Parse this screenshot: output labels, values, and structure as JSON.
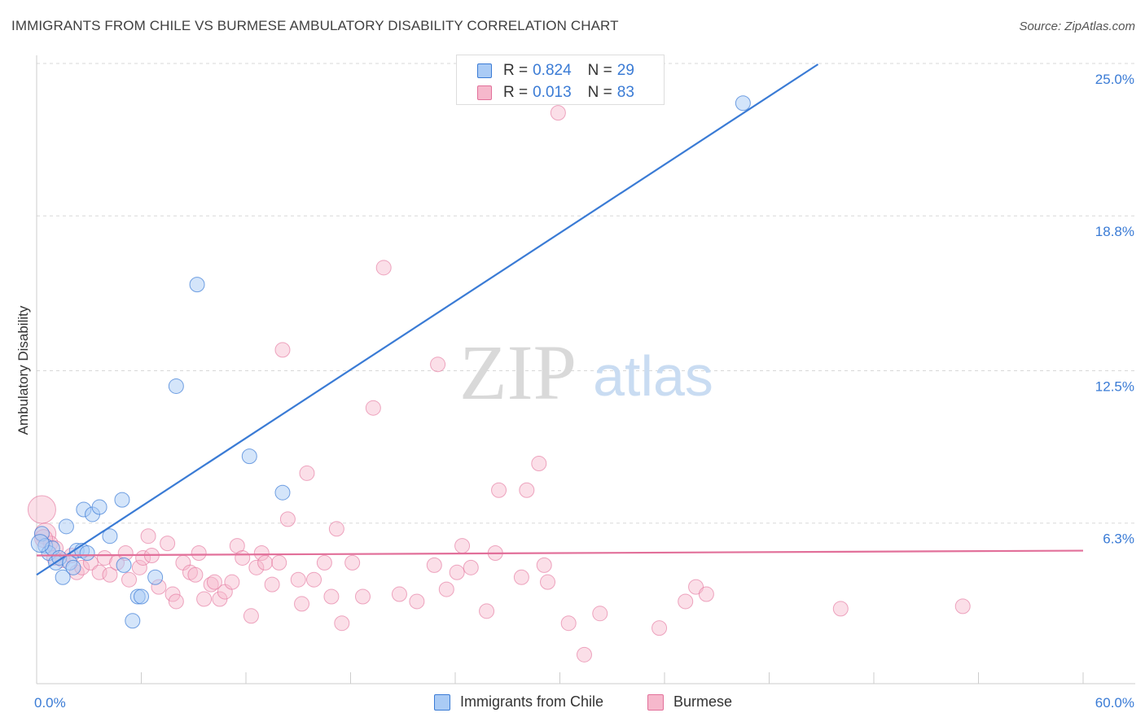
{
  "title": "IMMIGRANTS FROM CHILE VS BURMESE AMBULATORY DISABILITY CORRELATION CHART",
  "source": "Source: ZipAtlas.com",
  "watermark": {
    "zip": "ZIP",
    "atlas": "atlas"
  },
  "colors": {
    "blue": "#3a7bd5",
    "blue_fill": "#aacbf5",
    "pink": "#e2709a",
    "pink_fill": "#f6b8cc",
    "grid": "#d8d8d8",
    "tick_text": "#3a7bd5"
  },
  "legend_top": {
    "rows": [
      {
        "r_label": "R =",
        "r_value": "0.824",
        "n_label": "N =",
        "n_value": "29"
      },
      {
        "r_label": "R =",
        "r_value": "0.013",
        "n_label": "N =",
        "n_value": "83"
      }
    ]
  },
  "legend_bottom": {
    "series1": "Immigrants from Chile",
    "series2": "Burmese"
  },
  "chart_data": {
    "type": "scatter",
    "title": "IMMIGRANTS FROM CHILE VS BURMESE AMBULATORY DISABILITY CORRELATION CHART",
    "xlabel": "",
    "ylabel": "Ambulatory Disability",
    "xlim": [
      0,
      60
    ],
    "ylim": [
      0,
      25
    ],
    "x_tick_labels": [
      "0.0%",
      "60.0%"
    ],
    "y_ticks": [
      6.3,
      12.5,
      18.8,
      25.0
    ],
    "y_tick_labels": [
      "6.3%",
      "12.5%",
      "18.8%",
      "25.0%"
    ],
    "grid": true,
    "series": [
      {
        "name": "Immigrants from Chile",
        "r": 0.824,
        "n": 29,
        "trend": {
          "x0": 0.0,
          "y0": 4.5,
          "x1": 44.8,
          "y1": 25.0
        },
        "points": [
          [
            0.3,
            6.2
          ],
          [
            0.5,
            5.7
          ],
          [
            0.7,
            5.4
          ],
          [
            0.9,
            5.6
          ],
          [
            1.1,
            5.0
          ],
          [
            1.3,
            5.2
          ],
          [
            1.5,
            4.4
          ],
          [
            1.7,
            6.5
          ],
          [
            1.9,
            5.0
          ],
          [
            2.1,
            4.8
          ],
          [
            2.3,
            5.5
          ],
          [
            2.6,
            5.5
          ],
          [
            2.7,
            7.2
          ],
          [
            2.9,
            5.4
          ],
          [
            3.2,
            7.0
          ],
          [
            3.6,
            7.3
          ],
          [
            4.2,
            6.1
          ],
          [
            4.9,
            7.6
          ],
          [
            5.0,
            4.9
          ],
          [
            5.5,
            2.6
          ],
          [
            5.8,
            3.6
          ],
          [
            6.0,
            3.6
          ],
          [
            6.8,
            4.4
          ],
          [
            8.0,
            12.3
          ],
          [
            9.2,
            16.5
          ],
          [
            12.2,
            9.4
          ],
          [
            14.1,
            7.9
          ],
          [
            40.5,
            24.0
          ],
          [
            0.2,
            5.8
          ]
        ]
      },
      {
        "name": "Burmese",
        "r": 0.013,
        "n": 83,
        "trend": {
          "x0": 0.0,
          "y0": 5.3,
          "x1": 60.0,
          "y1": 5.5
        },
        "points": [
          [
            0.3,
            7.2
          ],
          [
            0.5,
            6.2
          ],
          [
            0.8,
            5.8
          ],
          [
            1.1,
            5.6
          ],
          [
            1.5,
            5.1
          ],
          [
            2.0,
            5.3
          ],
          [
            2.3,
            4.6
          ],
          [
            2.6,
            4.8
          ],
          [
            3.1,
            5.0
          ],
          [
            3.6,
            4.6
          ],
          [
            3.9,
            5.2
          ],
          [
            4.2,
            4.5
          ],
          [
            4.6,
            5.0
          ],
          [
            5.1,
            5.4
          ],
          [
            5.3,
            4.3
          ],
          [
            5.9,
            4.8
          ],
          [
            6.1,
            5.2
          ],
          [
            6.4,
            6.1
          ],
          [
            6.6,
            5.3
          ],
          [
            7.0,
            4.0
          ],
          [
            7.5,
            5.8
          ],
          [
            7.8,
            3.7
          ],
          [
            8.0,
            3.4
          ],
          [
            8.4,
            5.0
          ],
          [
            8.8,
            4.6
          ],
          [
            9.1,
            4.5
          ],
          [
            9.3,
            5.4
          ],
          [
            9.6,
            3.5
          ],
          [
            10.0,
            4.1
          ],
          [
            10.2,
            4.2
          ],
          [
            10.5,
            3.5
          ],
          [
            10.8,
            3.8
          ],
          [
            11.2,
            4.2
          ],
          [
            11.5,
            5.7
          ],
          [
            11.8,
            5.2
          ],
          [
            12.3,
            2.8
          ],
          [
            12.6,
            4.8
          ],
          [
            12.9,
            5.4
          ],
          [
            13.1,
            5.0
          ],
          [
            13.5,
            4.1
          ],
          [
            13.9,
            5.0
          ],
          [
            14.1,
            13.8
          ],
          [
            14.4,
            6.8
          ],
          [
            15.0,
            4.3
          ],
          [
            15.2,
            3.3
          ],
          [
            15.5,
            8.7
          ],
          [
            15.9,
            4.3
          ],
          [
            16.5,
            5.0
          ],
          [
            16.9,
            3.6
          ],
          [
            17.2,
            6.4
          ],
          [
            17.5,
            2.5
          ],
          [
            18.1,
            5.0
          ],
          [
            18.7,
            3.6
          ],
          [
            19.3,
            11.4
          ],
          [
            19.9,
            17.2
          ],
          [
            20.8,
            3.7
          ],
          [
            21.8,
            3.4
          ],
          [
            22.8,
            4.9
          ],
          [
            23.0,
            13.2
          ],
          [
            23.5,
            3.9
          ],
          [
            24.1,
            4.6
          ],
          [
            24.4,
            5.7
          ],
          [
            24.9,
            4.8
          ],
          [
            25.8,
            3.0
          ],
          [
            26.3,
            5.4
          ],
          [
            26.5,
            8.0
          ],
          [
            27.8,
            4.4
          ],
          [
            28.1,
            8.0
          ],
          [
            28.8,
            9.1
          ],
          [
            29.1,
            4.9
          ],
          [
            29.3,
            4.2
          ],
          [
            29.9,
            23.6
          ],
          [
            30.5,
            2.5
          ],
          [
            31.4,
            1.2
          ],
          [
            32.3,
            2.9
          ],
          [
            35.7,
            2.3
          ],
          [
            37.2,
            3.4
          ],
          [
            37.8,
            4.0
          ],
          [
            38.4,
            3.7
          ],
          [
            46.1,
            3.1
          ],
          [
            53.1,
            3.2
          ],
          [
            0.4,
            6.0
          ],
          [
            1.0,
            5.2
          ]
        ]
      }
    ]
  }
}
